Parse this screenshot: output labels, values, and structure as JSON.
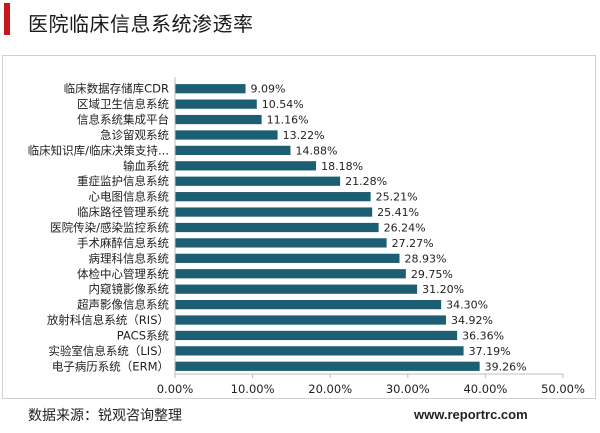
{
  "page": {
    "title": "医院临床信息系统渗透率",
    "source": "数据来源：锐观咨询整理",
    "website": "www.reportrc.com"
  },
  "chart_data": {
    "type": "bar",
    "orientation": "horizontal",
    "categories": [
      "临床数据存储库CDR",
      "区域卫生信息系统",
      "信息系统集成平台",
      "急诊留观系统",
      "临床知识库/临床决策支持...",
      "输血系统",
      "重症监护信息系统",
      "心电图信息系统",
      "临床路径管理系统",
      "医院传染/感染监控系统",
      "手术麻醉信息系统",
      "病理科信息系统",
      "体检中心管理系统",
      "内窥镜影像系统",
      "超声影像信息系统",
      "放射科信息系统（RIS）",
      "PACS系统",
      "实验室信息系统（LIS）",
      "电子病历系统（ERM）"
    ],
    "values": [
      9.09,
      10.54,
      11.16,
      13.22,
      14.88,
      18.18,
      21.28,
      25.21,
      25.41,
      26.24,
      27.27,
      28.93,
      29.75,
      31.2,
      34.3,
      34.92,
      36.36,
      37.19,
      39.26
    ],
    "value_labels": [
      "9.09%",
      "10.54%",
      "11.16%",
      "13.22%",
      "14.88%",
      "18.18%",
      "21.28%",
      "25.21%",
      "25.41%",
      "26.24%",
      "27.27%",
      "28.93%",
      "29.75%",
      "31.20%",
      "34.30%",
      "34.92%",
      "36.36%",
      "37.19%",
      "39.26%"
    ],
    "x_ticks": [
      "0.00%",
      "10.00%",
      "20.00%",
      "30.00%",
      "40.00%",
      "50.00%"
    ],
    "xlim": [
      0,
      50
    ],
    "bar_color": "#1c5f73",
    "grid": false
  }
}
